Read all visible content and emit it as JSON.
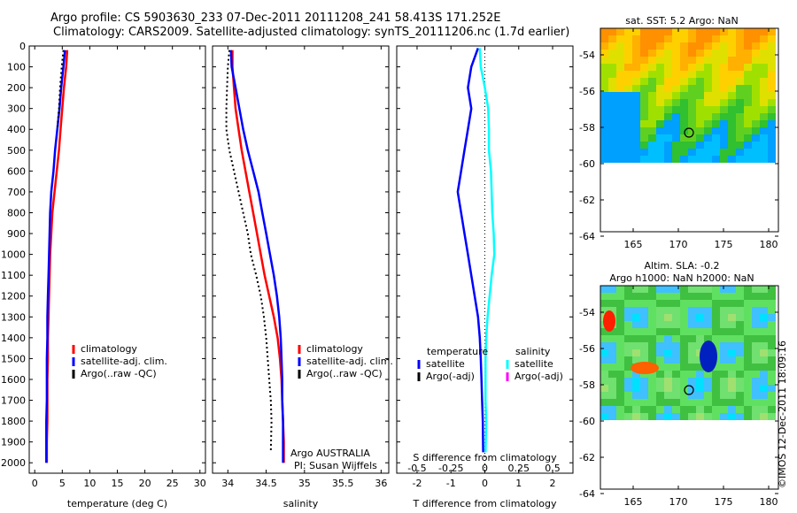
{
  "header": {
    "line1": "Argo profile: CS 5903630_233 07-Dec-2011 20111208_241 58.413S 171.252E",
    "line2": "Climatology: CARS2009. Satellite-adjusted climatology: synTS_20111206.nc (1.7d earlier)"
  },
  "footer_credit": "©IMOS 12-Dec-2011 18:09:16",
  "colors": {
    "climatology": "#ff0000",
    "satellite": "#0000ff",
    "argo": "#000000",
    "satellite_salinity": "#00ffff",
    "argo_adj_salinity": "#ff00ff"
  },
  "chart_data": [
    {
      "type": "line",
      "xlabel": "temperature (deg C)",
      "ylabel": "",
      "xlim": [
        -1,
        31
      ],
      "ylim": [
        2050,
        0
      ],
      "xticks": [
        0,
        5,
        10,
        15,
        20,
        25,
        30
      ],
      "yticks": [
        0,
        100,
        200,
        300,
        400,
        500,
        600,
        700,
        800,
        900,
        1000,
        1100,
        1200,
        1300,
        1400,
        1500,
        1600,
        1700,
        1800,
        1900,
        2000
      ],
      "legend": [
        "climatology",
        "satellite-adj. clim.",
        "Argo(..raw -QC)"
      ],
      "series": [
        {
          "name": "climatology",
          "x": [
            5.9,
            5.7,
            5.3,
            5.0,
            4.7,
            4.4,
            4.0,
            3.6,
            3.2,
            3.0,
            2.8,
            2.7,
            2.6,
            2.5,
            2.4,
            2.4,
            2.3,
            2.3,
            2.3,
            2.2,
            2.2
          ],
          "y": [
            20,
            100,
            200,
            300,
            400,
            500,
            600,
            700,
            800,
            900,
            1000,
            1100,
            1200,
            1300,
            1400,
            1500,
            1600,
            1700,
            1800,
            1900,
            2000
          ]
        },
        {
          "name": "satellite-adj. clim.",
          "x": [
            5.5,
            5.2,
            4.8,
            4.5,
            4.1,
            3.7,
            3.4,
            3.0,
            2.8,
            2.7,
            2.6,
            2.5,
            2.4,
            2.3,
            2.3,
            2.2,
            2.2,
            2.2,
            2.1,
            2.1,
            2.1
          ],
          "y": [
            20,
            100,
            200,
            300,
            400,
            500,
            600,
            700,
            800,
            900,
            1000,
            1100,
            1200,
            1300,
            1400,
            1500,
            1600,
            1700,
            1800,
            1900,
            2000
          ]
        },
        {
          "name": "Argo(..raw -QC)",
          "x": [
            5.2,
            4.9,
            4.6,
            4.4,
            4.1
          ],
          "y": [
            20,
            100,
            200,
            300,
            400
          ]
        }
      ]
    },
    {
      "type": "line",
      "xlabel": "salinity",
      "xlim": [
        33.8,
        36.1
      ],
      "ylim": [
        2050,
        0
      ],
      "xticks": [
        34,
        34.5,
        35,
        35.5,
        36
      ],
      "legend": [
        "climatology",
        "satellite-adj. clim.",
        "Argo(..raw -QC)"
      ],
      "annotation": [
        "Argo AUSTRALIA",
        "PI: Susan Wijffels"
      ],
      "series": [
        {
          "name": "climatology",
          "x": [
            34.06,
            34.06,
            34.08,
            34.1,
            34.14,
            34.18,
            34.23,
            34.28,
            34.33,
            34.38,
            34.43,
            34.48,
            34.54,
            34.6,
            34.65,
            34.68,
            34.7,
            34.71,
            34.72,
            34.73,
            34.73
          ],
          "y": [
            20,
            100,
            200,
            300,
            400,
            500,
            600,
            700,
            800,
            900,
            1000,
            1100,
            1200,
            1300,
            1400,
            1500,
            1600,
            1700,
            1800,
            1900,
            2000
          ]
        },
        {
          "name": "satellite-adj. clim.",
          "x": [
            34.04,
            34.05,
            34.1,
            34.15,
            34.2,
            34.26,
            34.33,
            34.4,
            34.45,
            34.5,
            34.55,
            34.6,
            34.64,
            34.67,
            34.69,
            34.7,
            34.71,
            34.71,
            34.72,
            34.72,
            34.72
          ],
          "y": [
            20,
            100,
            200,
            300,
            400,
            500,
            600,
            700,
            800,
            900,
            1000,
            1100,
            1200,
            1300,
            1400,
            1500,
            1600,
            1700,
            1800,
            1900,
            2000
          ]
        },
        {
          "name": "Argo(..raw -QC)",
          "x": [
            34.02,
            34.0,
            33.99,
            33.98,
            33.98,
            34.02,
            34.08,
            34.14,
            34.2,
            34.26,
            34.3,
            34.37,
            34.43,
            34.47,
            34.5,
            34.52,
            34.54,
            34.56,
            34.57,
            34.56
          ],
          "y": [
            20,
            100,
            200,
            300,
            400,
            500,
            600,
            700,
            800,
            900,
            1000,
            1100,
            1200,
            1300,
            1400,
            1500,
            1600,
            1700,
            1800,
            1950
          ]
        }
      ]
    },
    {
      "type": "line",
      "xlabel": "T difference from climatology",
      "xlabel_top": "S difference from climatology",
      "xlim": [
        -2.6,
        2.6
      ],
      "ylim": [
        2050,
        0
      ],
      "xticks": [
        -2,
        -1,
        0,
        1,
        2
      ],
      "xticks_s": [
        -0.5,
        -0.25,
        0,
        0.25,
        0.5
      ],
      "legend_groups": [
        {
          "title": "temperature",
          "items": [
            "satellite",
            "Argo(-adj)"
          ]
        },
        {
          "title": "salinity",
          "items": [
            "satellite",
            "Argo(-adj)"
          ]
        }
      ],
      "series": [
        {
          "name": "temperature satellite",
          "x": [
            -0.2,
            -0.4,
            -0.5,
            -0.4,
            -0.5,
            -0.6,
            -0.7,
            -0.8,
            -0.7,
            -0.6,
            -0.5,
            -0.4,
            -0.3,
            -0.2,
            -0.15,
            -0.12,
            -0.1,
            -0.08,
            -0.06,
            -0.05
          ],
          "y": [
            10,
            100,
            200,
            300,
            400,
            500,
            600,
            700,
            800,
            900,
            1000,
            1100,
            1200,
            1300,
            1400,
            1500,
            1600,
            1700,
            1800,
            1950
          ]
        },
        {
          "name": "salinity satellite",
          "x": [
            -0.15,
            -0.12,
            0,
            0.1,
            0.12,
            0.12,
            0.18,
            0.2,
            0.22,
            0.26,
            0.28,
            0.2,
            0.14,
            0.08,
            0.04,
            0.02,
            0.02,
            0.02,
            0.04,
            0.02
          ],
          "y": [
            10,
            100,
            200,
            300,
            400,
            500,
            600,
            700,
            800,
            900,
            1000,
            1100,
            1200,
            1300,
            1400,
            1500,
            1600,
            1700,
            1800,
            1950
          ]
        }
      ]
    }
  ],
  "maps": [
    {
      "title": "sat. SST: 5.2 Argo: NaN",
      "x_ticks": [
        "165",
        "170",
        "175",
        "180"
      ],
      "y_ticks": [
        "-54",
        "-56",
        "-58",
        "-60",
        "-62",
        "-64"
      ],
      "marker": "58.413S 171.252E"
    },
    {
      "title": "Altim. SLA: -0.2",
      "subtitle": "Argo h1000: NaN h2000: NaN",
      "x_ticks": [
        "165",
        "170",
        "175",
        "180"
      ],
      "y_ticks": [
        "-54",
        "-56",
        "-58",
        "-60",
        "-62",
        "-64"
      ],
      "marker": "58.413S 171.252E"
    }
  ]
}
